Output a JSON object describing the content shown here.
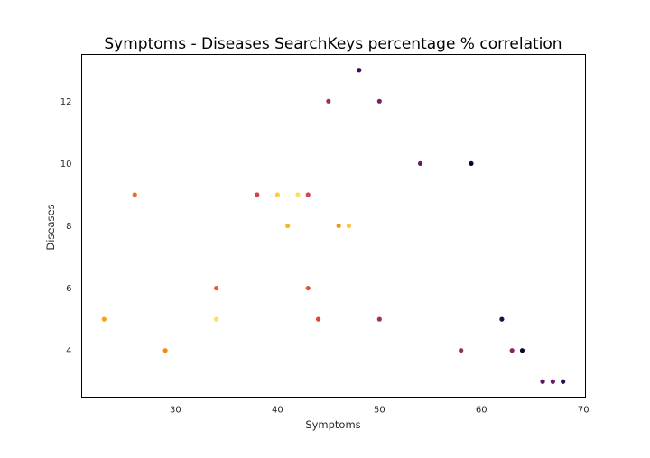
{
  "chart_data": {
    "type": "scatter",
    "title": "Symptoms - Diseases SearchKeys percentage % correlation",
    "xlabel": "Symptoms",
    "ylabel": "Diseases",
    "xlim": [
      20.8,
      70.2
    ],
    "ylim": [
      2.5,
      13.5
    ],
    "xticks": [
      30,
      40,
      50,
      60,
      70
    ],
    "yticks": [
      4,
      6,
      8,
      10,
      12
    ],
    "grid": false,
    "colormap": "inferno",
    "points": [
      {
        "x": 48,
        "y": 13,
        "color": "#3d0965"
      },
      {
        "x": 45,
        "y": 12,
        "color": "#a3305c"
      },
      {
        "x": 50,
        "y": 12,
        "color": "#7d1e6d"
      },
      {
        "x": 54,
        "y": 10,
        "color": "#6a176e"
      },
      {
        "x": 59,
        "y": 10,
        "color": "#0a0722"
      },
      {
        "x": 26,
        "y": 9,
        "color": "#ec6e1c"
      },
      {
        "x": 38,
        "y": 9,
        "color": "#cf4446"
      },
      {
        "x": 40,
        "y": 9,
        "color": "#f7d13d"
      },
      {
        "x": 42,
        "y": 9,
        "color": "#f9e35e"
      },
      {
        "x": 43,
        "y": 9,
        "color": "#d5474a"
      },
      {
        "x": 41,
        "y": 8,
        "color": "#f8b62b"
      },
      {
        "x": 46,
        "y": 8,
        "color": "#f09a1a"
      },
      {
        "x": 47,
        "y": 8,
        "color": "#f8c640"
      },
      {
        "x": 34,
        "y": 6,
        "color": "#e45a31"
      },
      {
        "x": 43,
        "y": 6,
        "color": "#df5337"
      },
      {
        "x": 23,
        "y": 5,
        "color": "#f6a50e"
      },
      {
        "x": 34,
        "y": 5,
        "color": "#f8e35f"
      },
      {
        "x": 44,
        "y": 5,
        "color": "#d8483f"
      },
      {
        "x": 50,
        "y": 5,
        "color": "#a52c60"
      },
      {
        "x": 62,
        "y": 5,
        "color": "#240c4f"
      },
      {
        "x": 29,
        "y": 4,
        "color": "#f38a0f"
      },
      {
        "x": 58,
        "y": 4,
        "color": "#8c2d5a"
      },
      {
        "x": 63,
        "y": 4,
        "color": "#8b2269"
      },
      {
        "x": 64,
        "y": 4,
        "color": "#0c0826"
      },
      {
        "x": 66,
        "y": 3,
        "color": "#5d126e"
      },
      {
        "x": 67,
        "y": 3,
        "color": "#6b186e"
      },
      {
        "x": 68,
        "y": 3,
        "color": "#2c0b57"
      }
    ]
  }
}
